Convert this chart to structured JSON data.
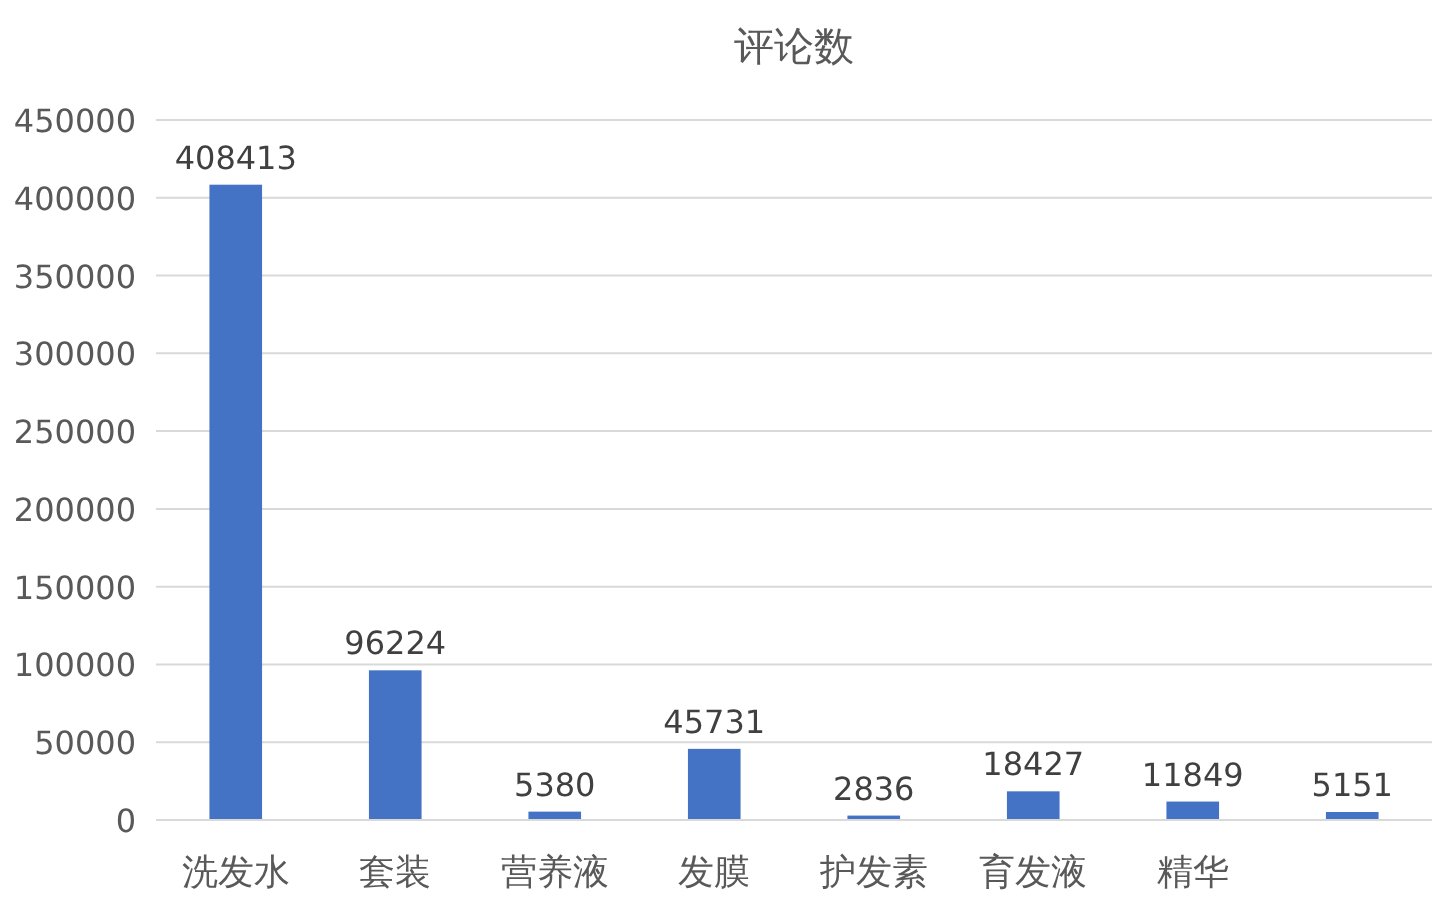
{
  "chart_data": {
    "type": "bar",
    "title": "评论数",
    "categories": [
      "洗发水",
      "套装",
      "营养液",
      "发膜",
      "护发素",
      "育发液",
      "精华",
      null
    ],
    "values": [
      408413,
      96224,
      5380,
      45731,
      2836,
      18427,
      11849,
      5151
    ],
    "color": "#4472c4",
    "data_labels": true,
    "grid": "y",
    "ylim": [
      0,
      450000
    ],
    "yticks": [
      0,
      50000,
      100000,
      150000,
      200000,
      250000,
      300000,
      350000,
      400000,
      450000
    ]
  }
}
